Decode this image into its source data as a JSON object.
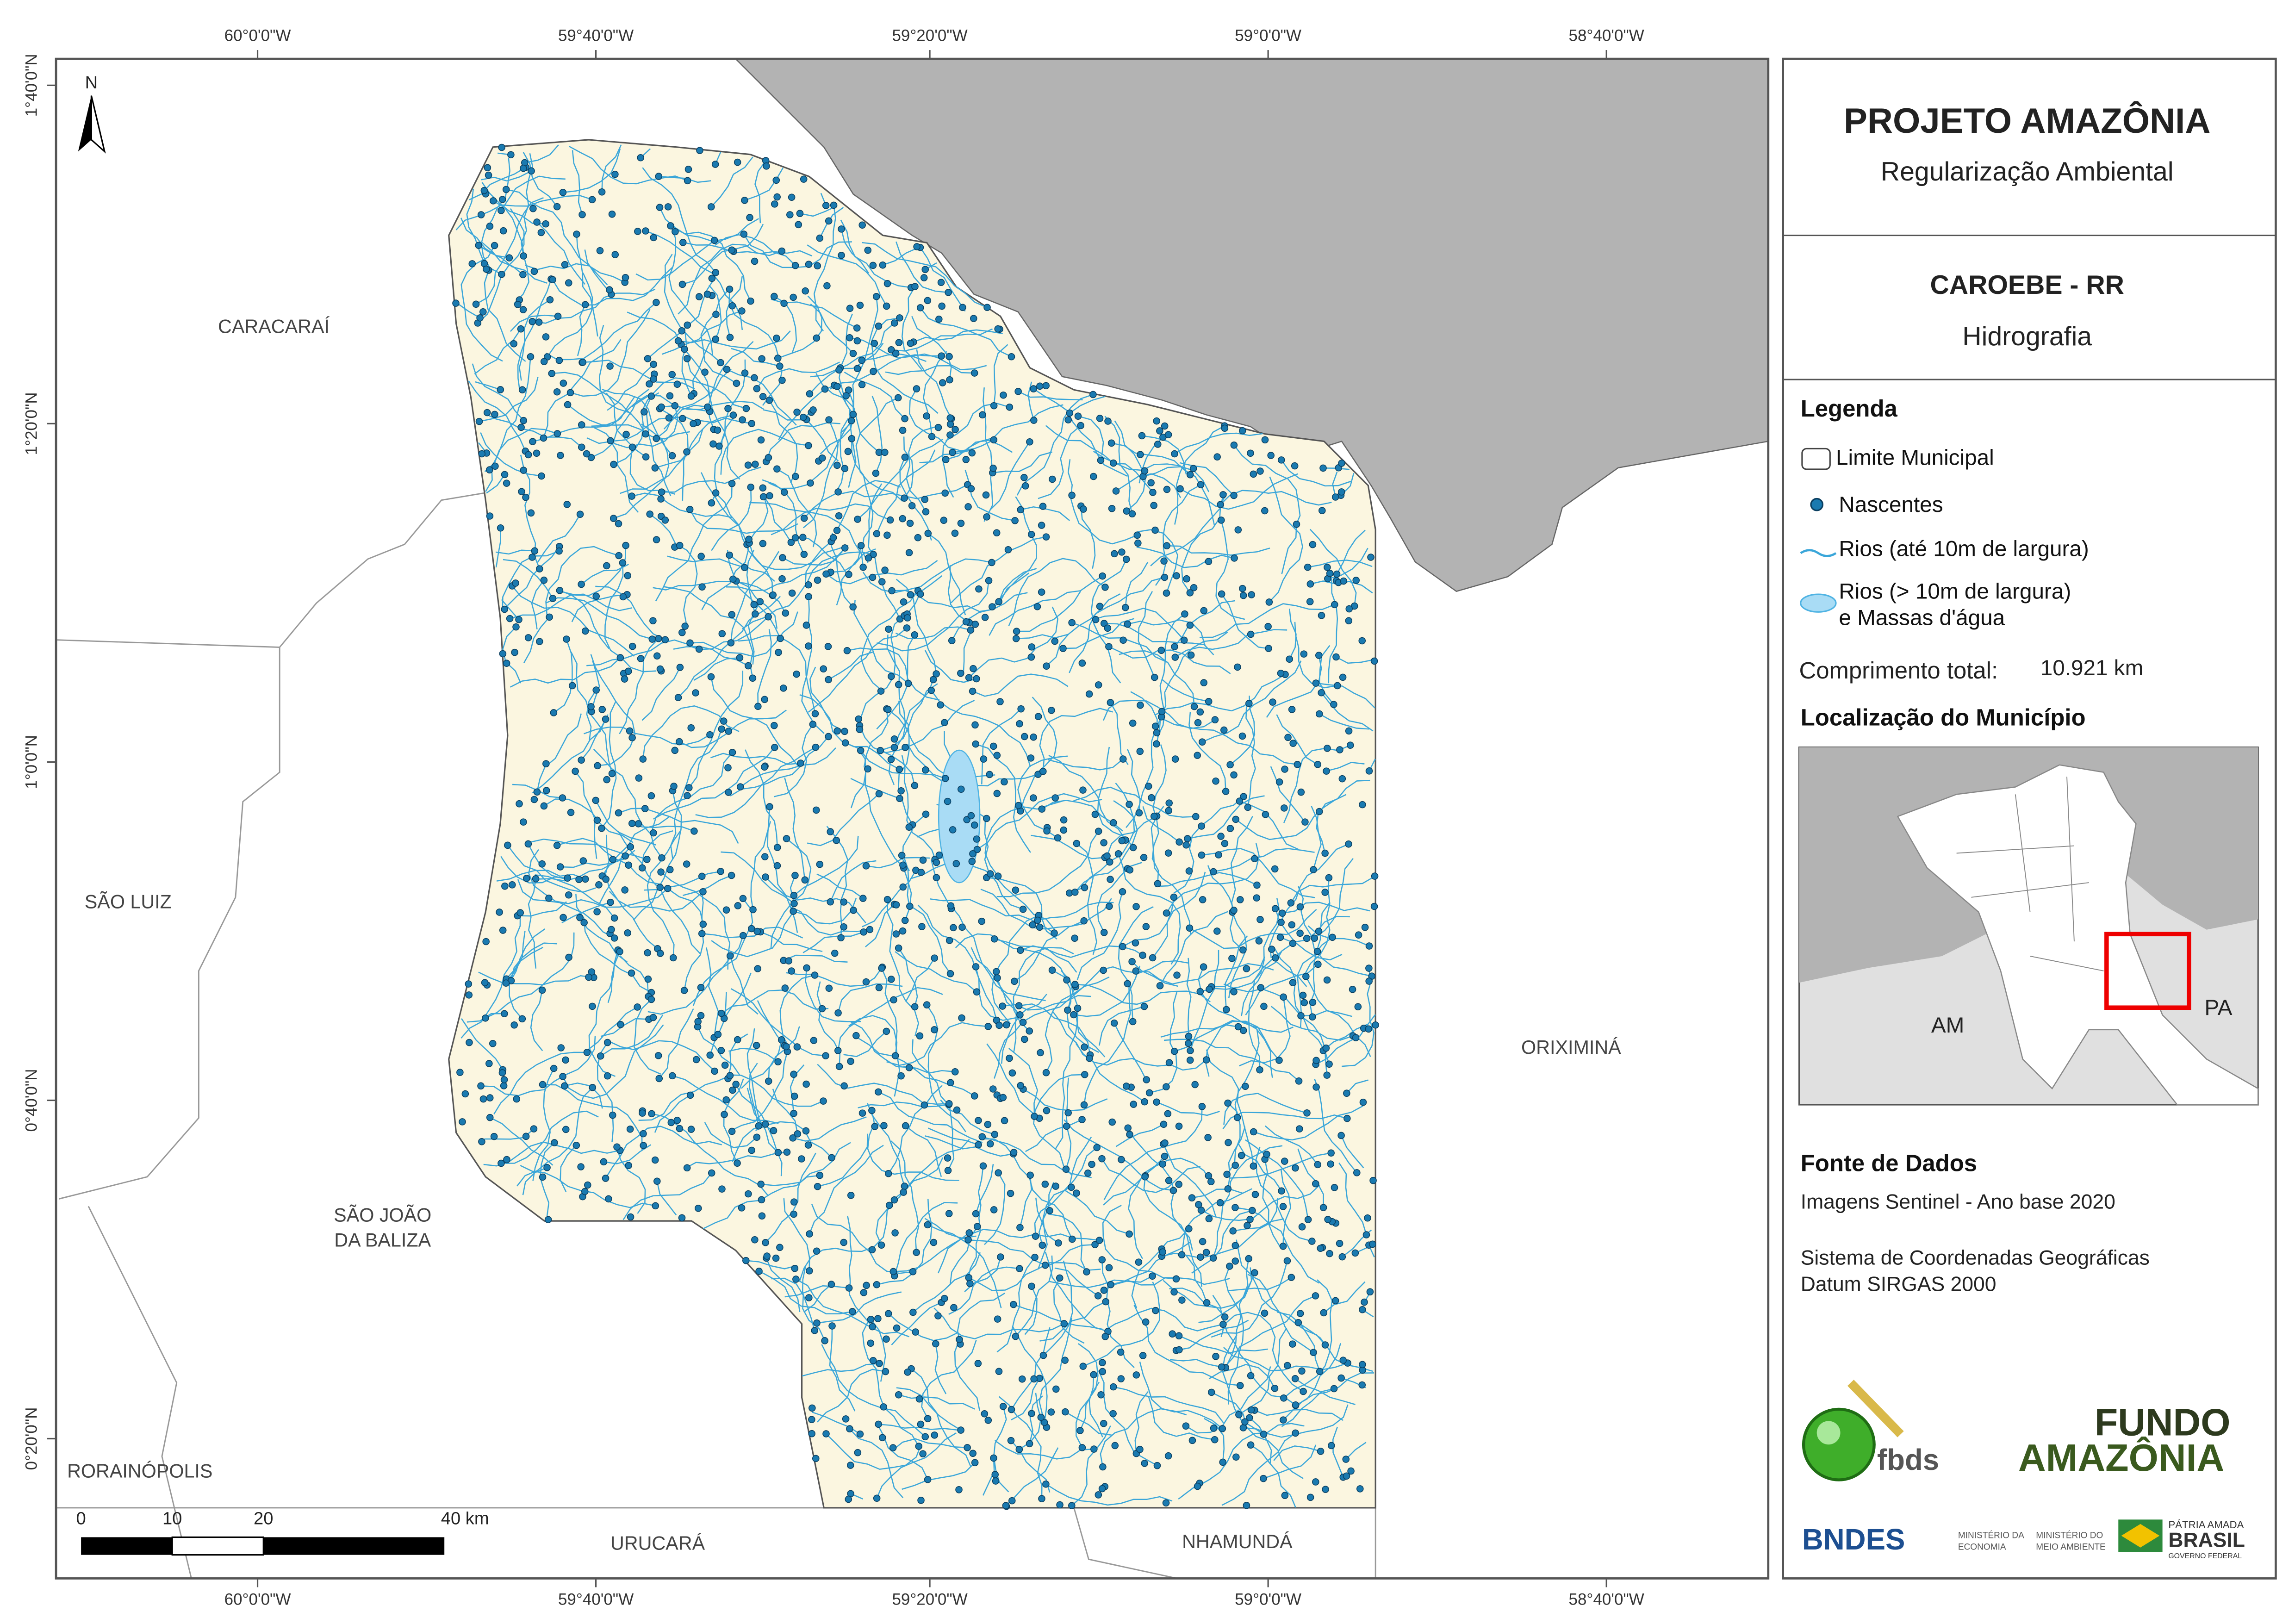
{
  "map": {
    "lon_labels": [
      "60°0'0\"W",
      "59°40'0\"W",
      "59°20'0\"W",
      "59°0'0\"W",
      "58°40'0\"W"
    ],
    "lat_labels": [
      "1°40'0\"N",
      "1°20'0\"N",
      "1°0'0\"N",
      "0°40'0\"N",
      "0°20'0\"N"
    ],
    "north": "N",
    "places": [
      "CARACARAÍ",
      "SÃO LUIZ",
      "SÃO JOÃO",
      "DA BALIZA",
      "RORAINÓPOLIS",
      "URUCARÁ",
      "NHAMUNDÁ",
      "ORIXIMINÁ"
    ],
    "scale_bar": [
      "0",
      "10",
      "20",
      "40 km"
    ]
  },
  "panel": {
    "title": "PROJETO AMAZÔNIA",
    "subtitle": "Regularização Ambiental",
    "municipality": "CAROEBE - RR",
    "theme": "Hidrografia",
    "legend": {
      "title": "Legenda",
      "items": [
        "Limite Municipal",
        "Nascentes",
        "Rios (até 10m de largura)",
        "Rios (> 10m de largura)",
        "e Massas d'água"
      ],
      "length_label": "Comprimento total:",
      "length_value": "10.921 km"
    },
    "location": {
      "title": "Localização do Município",
      "labels": [
        "AM",
        "PA"
      ]
    },
    "sources": {
      "title": "Fonte de Dados",
      "lines": [
        "Imagens Sentinel - Ano base 2020",
        "Sistema de Coordenadas Geográficas",
        "Datum SIRGAS 2000"
      ]
    },
    "logos": [
      "fbds",
      "FUNDO",
      "AMAZÔNIA",
      "BNDES",
      "MINISTÉRIO DA",
      "ECONOMIA",
      "MINISTÉRIO DO",
      "MEIO AMBIENTE",
      "PÁTRIA AMADA",
      "BRASIL",
      "GOVERNO FEDERAL"
    ]
  }
}
